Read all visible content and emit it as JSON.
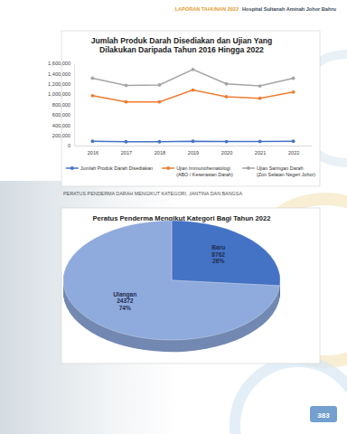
{
  "header": {
    "report": "LAPORAN TAHUNAN 2022",
    "hospital": "Hospital Sultanah Aminah Johor Bahru"
  },
  "chart_data": [
    {
      "type": "line",
      "title": "Jumlah Produk Darah Disediakan dan Ujian Yang Dilakukan Daripada Tahun 2016 Hingga 2022",
      "categories": [
        "2016",
        "2017",
        "2018",
        "2019",
        "2020",
        "2021",
        "2022"
      ],
      "series": [
        {
          "name": "Jumlah Produk Darah Disediakan",
          "color": "#4472c4",
          "values": [
            85000,
            75000,
            75000,
            85000,
            78000,
            80000,
            85000
          ]
        },
        {
          "name": "Ujian Immunohematologi (ABO / Keserasian Darah)",
          "color": "#ed7d31",
          "values": [
            970000,
            850000,
            850000,
            1080000,
            950000,
            920000,
            1040000
          ]
        },
        {
          "name": "Ujian Saringan Darah (Zon Selatan Negeri Johor)",
          "color": "#a5a5a5",
          "values": [
            1310000,
            1170000,
            1180000,
            1480000,
            1200000,
            1160000,
            1310000
          ]
        }
      ],
      "ylim": [
        0,
        1600000
      ],
      "yticks": [
        0,
        {
          "value": 200000,
          "label": "200,000"
        },
        {
          "value": 400000,
          "label": "400,000"
        },
        {
          "value": 600000,
          "label": "600,000"
        },
        {
          "value": 800000,
          "label": "800,000"
        },
        {
          "value": 1000000,
          "label": "1,000,000"
        },
        {
          "value": 1200000,
          "label": "1,200,000"
        },
        {
          "value": 1400000,
          "label": "1,400,000"
        },
        {
          "value": 1600000,
          "label": "1,600,000"
        }
      ],
      "grid": false,
      "legend": "bottom",
      "marker": "circle"
    },
    {
      "type": "pie",
      "title": "Peratus Penderma Mengikut Kategori Bagi Tahun 2022",
      "categories": [
        "Baru",
        "Ulangan"
      ],
      "values": [
        8762,
        24372
      ],
      "percentages": [
        26,
        74
      ],
      "percentage_labels": [
        "26%",
        "74%"
      ],
      "colors": [
        "#4472c4",
        "#8faadc"
      ],
      "data_labels": true
    }
  ],
  "caption": "PERATUS PENDERMA DARAH MENGIKUT KATEGORI, JANTINA DAN BANGSA",
  "page_number": 383
}
